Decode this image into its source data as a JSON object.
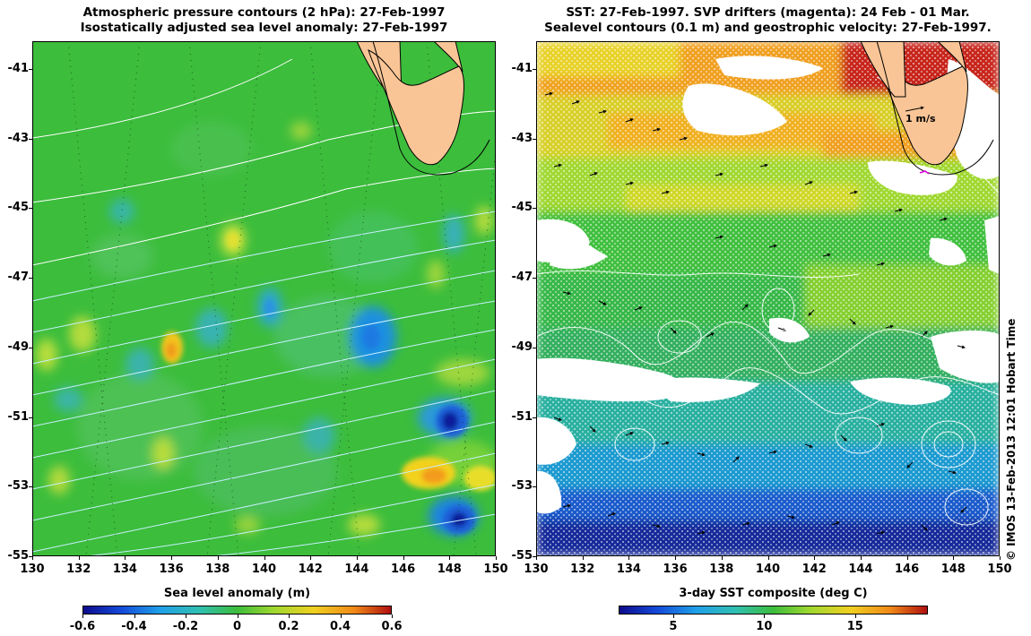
{
  "left_panel": {
    "title_line1": "Atmospheric pressure contours (2 hPa): 27-Feb-1997",
    "title_line2": "Isostatically adjusted sea level anomaly: 27-Feb-1997",
    "colorbar": {
      "label": "Sea level anomaly (m)",
      "ticks": [
        "-0.6",
        "-0.4",
        "-0.2",
        "0",
        "0.2",
        "0.4",
        "0.6"
      ],
      "range": [
        -0.6,
        0.6
      ]
    }
  },
  "right_panel": {
    "title_line1": "SST: 27-Feb-1997. SVP drifters (magenta): 24 Feb - 01 Mar.",
    "title_line2": "Sealevel contours (0.1 m) and geostrophic velocity: 27-Feb-1997.",
    "velocity_scale_label": "1 m/s",
    "colorbar": {
      "label": "3-day SST composite (deg C)",
      "ticks": [
        "5",
        "10",
        "15"
      ],
      "range": [
        2,
        19
      ]
    }
  },
  "axes": {
    "lat_labels": [
      "-41",
      "-43",
      "-45",
      "-47",
      "-49",
      "-51",
      "-53",
      "-55"
    ],
    "lon_labels": [
      "130",
      "132",
      "134",
      "136",
      "138",
      "140",
      "142",
      "144",
      "146",
      "148",
      "150"
    ],
    "lat_range": [
      -55,
      -40.2
    ],
    "lon_range": [
      130,
      150
    ]
  },
  "credit": "© IMOS 13-Feb-2013 12:01 Hobart Time",
  "colors": {
    "land": "#f9c596",
    "ocean_mid": "#3fbf3a",
    "frame": "#000000"
  }
}
